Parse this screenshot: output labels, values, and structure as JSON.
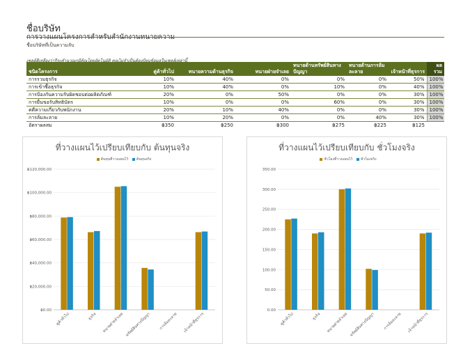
{
  "header": {
    "company": "ชื่อบริษัท",
    "subtitle": "การวางแผนโครงการสำหรับสำนักงานทนายความ",
    "confidential": "ชื่อบริษัทที่เป็นความลับ",
    "note": "เซลล์สีเหลืองว่ารีระคำนวณกมีคุ้ณโดยอัตโนมัติ คุณไม่จำเป็นต้องป้อนข้อมูลในเซลล์เหล่านี้"
  },
  "table": {
    "headers": [
      "ชนิดโครงการ",
      "คู่ค้าทั่วไป",
      "ทนายความด้านธุรกิจ",
      "ทนายฝ่ายจำเลย",
      "ทนายด้านทรัพย์สินทางปัญญา",
      "ทนายด้านการล้มละลาย",
      "เจ้าหน้าที่ธุรการ",
      "ผลรวม"
    ],
    "rows": [
      {
        "name": "การรวมธุรกิจ",
        "values": [
          "10%",
          "40%",
          "0%",
          "0%",
          "0%",
          "50%"
        ],
        "total": "100%"
      },
      {
        "name": "การเข้าซื้อธุรกิจ",
        "values": [
          "10%",
          "40%",
          "0%",
          "10%",
          "0%",
          "40%"
        ],
        "total": "100%"
      },
      {
        "name": "การป้องกันความรับผิดชอบต่อผลิตภัณฑ์",
        "values": [
          "20%",
          "0%",
          "50%",
          "0%",
          "0%",
          "30%"
        ],
        "total": "100%"
      },
      {
        "name": "การยื่นขอรับสิทธิบัตร",
        "values": [
          "10%",
          "0%",
          "0%",
          "60%",
          "0%",
          "30%"
        ],
        "total": "100%"
      },
      {
        "name": "คดีความเกี่ยวกับพนักงาน",
        "values": [
          "20%",
          "10%",
          "40%",
          "0%",
          "0%",
          "30%"
        ],
        "total": "100%"
      },
      {
        "name": "การล้มละลาย",
        "values": [
          "10%",
          "20%",
          "0%",
          "0%",
          "40%",
          "30%"
        ],
        "total": "100%"
      }
    ],
    "rates_label": "อัตราผลสม",
    "rates": [
      "฿350",
      "฿250",
      "฿300",
      "฿275",
      "฿225",
      "฿125"
    ]
  },
  "colors": {
    "planned": "#b8860b",
    "actual": "#1f8fc4",
    "header_bg": "#5c7120"
  },
  "chart_data": [
    {
      "type": "bar",
      "title": "ที่วางแผนไว้เปรียบเทียบกับ ต้นทุนจริง",
      "categories": [
        "คู่ค้าทั่วไป",
        "ธุรกิจ",
        "ทนายฝ่ายจำเลย",
        "ทรัพย์สินทางปัญญา",
        "การล้มละลาย",
        "เจ้าหน้าที่ธุรการ"
      ],
      "series": [
        {
          "name": "ต้นทุนที่วางแผนไว้",
          "values": [
            78750,
            66250,
            105000,
            35750,
            0,
            66250
          ]
        },
        {
          "name": "ต้นทุนจริง",
          "values": [
            79100,
            67200,
            105500,
            34400,
            0,
            66800
          ]
        }
      ],
      "ylim": [
        0,
        120000
      ],
      "yticks": [
        "฿0.00",
        "฿20,000.00",
        "฿40,000.00",
        "฿60,000.00",
        "฿80,000.00",
        "฿100,000.00",
        "฿120,000.00"
      ],
      "legend": "top"
    },
    {
      "type": "bar",
      "title": "ที่วางแผนไว้เปรียบเทียบกับ ชั่วโมงจริง",
      "categories": [
        "คู่ค้าทั่วไป",
        "ธุรกิจ",
        "ทนายฝ่ายจำเลย",
        "ทรัพย์สินทางปัญญา",
        "การล้มละลาย",
        "เจ้าหน้าที่ธุรการ"
      ],
      "series": [
        {
          "name": "ชั่วโมงที่วางแผนไว้",
          "values": [
            225,
            190,
            300,
            102,
            0,
            190
          ]
        },
        {
          "name": "ชั่วโมงจริง",
          "values": [
            227,
            193,
            302,
            99,
            0,
            192
          ]
        }
      ],
      "ylim": [
        0,
        350
      ],
      "yticks": [
        "0.00",
        "50.00",
        "100.00",
        "150.00",
        "200.00",
        "250.00",
        "300.00",
        "350.00"
      ],
      "legend": "top"
    }
  ]
}
